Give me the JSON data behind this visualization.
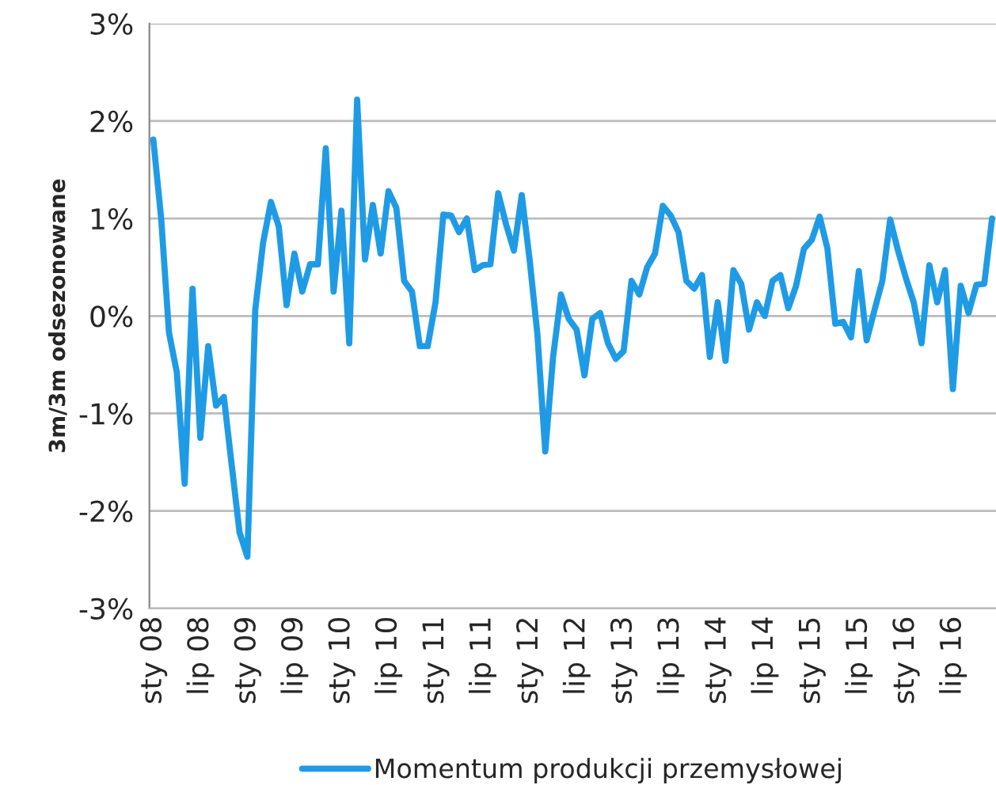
{
  "chart_data": {
    "type": "line",
    "ylabel": "3m/3m odsezonowane",
    "categories": [
      "sty 08",
      null,
      null,
      null,
      null,
      null,
      "lip 08",
      null,
      null,
      null,
      null,
      null,
      "sty 09",
      null,
      null,
      null,
      null,
      null,
      "lip 09",
      null,
      null,
      null,
      null,
      null,
      "sty 10",
      null,
      null,
      null,
      null,
      null,
      "lip 10",
      null,
      null,
      null,
      null,
      null,
      "sty 11",
      null,
      null,
      null,
      null,
      null,
      "lip 11",
      null,
      null,
      null,
      null,
      null,
      "sty 12",
      null,
      null,
      null,
      null,
      null,
      "lip 12",
      null,
      null,
      null,
      null,
      null,
      "sty 13",
      null,
      null,
      null,
      null,
      null,
      "lip 13",
      null,
      null,
      null,
      null,
      null,
      "sty 14",
      null,
      null,
      null,
      null,
      null,
      "lip 14",
      null,
      null,
      null,
      null,
      null,
      "sty 15",
      null,
      null,
      null,
      null,
      null,
      "lip 15",
      null,
      null,
      null,
      null,
      null,
      "sty 16",
      null,
      null,
      null,
      null,
      null,
      "lip 16",
      null,
      null,
      null,
      null,
      null
    ],
    "series": [
      {
        "name": "Momentum produkcji przemysłowej",
        "color": "#1f9be6",
        "values": [
          1.81,
          1.0,
          -0.17,
          -0.58,
          -1.72,
          0.28,
          -1.25,
          -0.31,
          -0.92,
          -0.83,
          -1.53,
          -2.22,
          -2.47,
          0.06,
          0.75,
          1.17,
          0.92,
          0.11,
          0.64,
          0.25,
          0.53,
          0.53,
          1.72,
          0.25,
          1.08,
          -0.28,
          2.22,
          0.58,
          1.14,
          0.64,
          1.28,
          1.11,
          0.36,
          0.25,
          -0.31,
          -0.31,
          0.14,
          1.04,
          1.03,
          0.86,
          1.0,
          0.47,
          0.52,
          0.53,
          1.26,
          0.94,
          0.67,
          1.24,
          0.58,
          -0.19,
          -1.39,
          -0.42,
          0.22,
          -0.03,
          -0.14,
          -0.61,
          -0.03,
          0.03,
          -0.28,
          -0.44,
          -0.36,
          0.36,
          0.22,
          0.5,
          0.64,
          1.13,
          1.03,
          0.86,
          0.36,
          0.28,
          0.42,
          -0.42,
          0.14,
          -0.46,
          0.47,
          0.33,
          -0.14,
          0.14,
          0.0,
          0.36,
          0.42,
          0.08,
          0.31,
          0.69,
          0.78,
          1.02,
          0.69,
          -0.08,
          -0.06,
          -0.22,
          0.46,
          -0.25,
          0.06,
          0.36,
          0.99,
          0.67,
          0.39,
          0.14,
          -0.28,
          0.52,
          0.14,
          0.47,
          -0.75,
          0.31,
          0.03,
          0.32,
          0.33,
          1.0
        ]
      }
    ],
    "ylim": [
      -3,
      3
    ],
    "yticks": [
      {
        "value": -3,
        "label": "-3%"
      },
      {
        "value": -2,
        "label": "-2%"
      },
      {
        "value": -1,
        "label": "-1%"
      },
      {
        "value": 0,
        "label": "0%"
      },
      {
        "value": 1,
        "label": "1%"
      },
      {
        "value": 2,
        "label": "2%"
      },
      {
        "value": 3,
        "label": "3%"
      }
    ],
    "grid": "y",
    "legend": "bottom",
    "line_style": "solid",
    "marker": "none"
  }
}
